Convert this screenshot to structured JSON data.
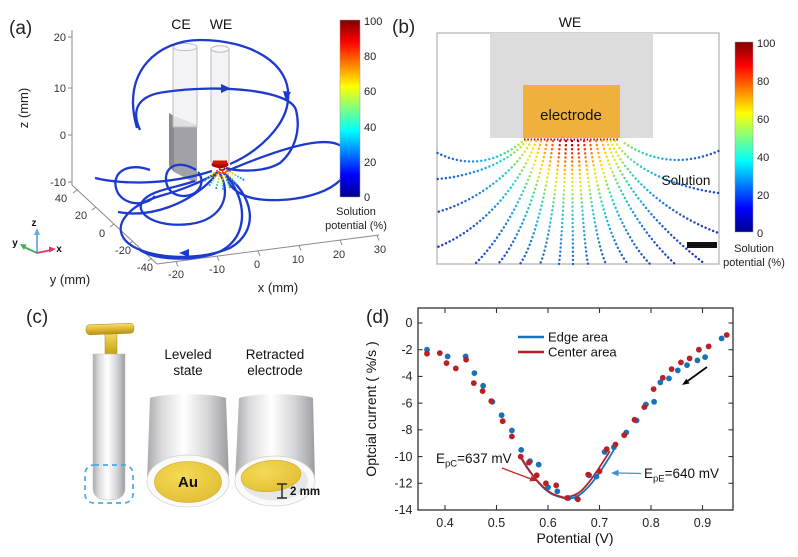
{
  "colors": {
    "streamline_blue": "#1c3ad0",
    "electrode_orange": "#f0b03c",
    "holder_gray": "#dcdcdc",
    "gold": "#e9c636",
    "axis_gray": "#8a8a8a",
    "plot_axis": "#333333"
  },
  "panel_a": {
    "label": "(a)",
    "ce_label": "CE",
    "we_label": "WE",
    "z_axis": {
      "label": "z (mm)",
      "ticks": [
        "20",
        "10",
        "0",
        "-10"
      ]
    },
    "y_axis": {
      "label": "y (mm)",
      "ticks": [
        "40",
        "20",
        "0",
        "-20",
        "-40"
      ]
    },
    "x_axis": {
      "label": "x (mm)",
      "ticks": [
        "-20",
        "-10",
        "0",
        "10",
        "20",
        "30"
      ]
    },
    "triad": {
      "x": "x",
      "y": "y",
      "z": "z"
    },
    "colorbar": {
      "ticks": [
        "100",
        "80",
        "60",
        "40",
        "20",
        "0"
      ],
      "title_line1": "Solution",
      "title_line2": "potential (%)"
    }
  },
  "panel_b": {
    "label": "(b)",
    "title": "WE",
    "electrode_label": "electrode",
    "solution_label": "Solution",
    "colorbar": {
      "ticks": [
        "100",
        "80",
        "60",
        "40",
        "20",
        "0"
      ],
      "title_line1": "Solution",
      "title_line2": "potential (%)"
    }
  },
  "panel_c": {
    "label": "(c)",
    "leveled": {
      "line1": "Leveled",
      "line2": "state"
    },
    "retracted": {
      "line1": "Retracted",
      "line2": "electrode"
    },
    "au_label": "Au",
    "scale_label": "2 mm"
  },
  "panel_d": {
    "label": "(d)"
  },
  "chart_data": {
    "type": "scatter",
    "title": "",
    "xlabel": "Potential (V)",
    "ylabel": "Optcial current ( %/s )",
    "xlim": [
      0.348,
      0.959
    ],
    "ylim": [
      -14,
      1.1
    ],
    "grid": false,
    "legend_position": "top-center-inside",
    "x_ticks": [
      {
        "value": 0.4,
        "label": "0.4"
      },
      {
        "value": 0.5,
        "label": "0.5"
      },
      {
        "value": 0.6,
        "label": "0.6"
      },
      {
        "value": 0.7,
        "label": "0.7"
      },
      {
        "value": 0.8,
        "label": "0.8"
      },
      {
        "value": 0.9,
        "label": "0.9"
      }
    ],
    "y_ticks": [
      {
        "value": 0,
        "label": "0"
      },
      {
        "value": -2,
        "label": "-2"
      },
      {
        "value": -4,
        "label": "-4"
      },
      {
        "value": -6,
        "label": "-6"
      },
      {
        "value": -8,
        "label": "-8"
      },
      {
        "value": -10,
        "label": "-10"
      },
      {
        "value": -12,
        "label": "-12"
      },
      {
        "value": -14,
        "label": "-14"
      }
    ],
    "series": [
      {
        "name": "Edge area",
        "color": "#1672b9",
        "marker": "circle",
        "points": [
          [
            0.365,
            -2.0
          ],
          [
            0.405,
            -2.5
          ],
          [
            0.44,
            -2.5
          ],
          [
            0.457,
            -3.75
          ],
          [
            0.474,
            -4.7
          ],
          [
            0.492,
            -5.9
          ],
          [
            0.51,
            -6.9
          ],
          [
            0.53,
            -8.05
          ],
          [
            0.548,
            -9.5
          ],
          [
            0.565,
            -10.35
          ],
          [
            0.582,
            -10.6
          ],
          [
            0.6,
            -12.3
          ],
          [
            0.618,
            -12.6
          ],
          [
            0.64,
            -13.1
          ],
          [
            0.656,
            -13.1
          ],
          [
            0.68,
            -11.4
          ],
          [
            0.694,
            -11.5
          ],
          [
            0.71,
            -9.65
          ],
          [
            0.728,
            -9.3
          ],
          [
            0.752,
            -8.2
          ],
          [
            0.772,
            -7.3
          ],
          [
            0.79,
            -6.1
          ],
          [
            0.806,
            -5.9
          ],
          [
            0.818,
            -4.45
          ],
          [
            0.835,
            -4.15
          ],
          [
            0.852,
            -3.55
          ],
          [
            0.87,
            -3.15
          ],
          [
            0.89,
            -2.8
          ],
          [
            0.905,
            -2.55
          ],
          [
            0.937,
            -1.15
          ]
        ]
      },
      {
        "name": "Center area",
        "color": "#b92025",
        "marker": "circle",
        "points": [
          [
            0.365,
            -2.3
          ],
          [
            0.39,
            -2.25
          ],
          [
            0.403,
            -3.0
          ],
          [
            0.421,
            -3.4
          ],
          [
            0.441,
            -2.75
          ],
          [
            0.456,
            -4.5
          ],
          [
            0.473,
            -5.1
          ],
          [
            0.49,
            -5.85
          ],
          [
            0.512,
            -7.35
          ],
          [
            0.53,
            -8.5
          ],
          [
            0.547,
            -10.0
          ],
          [
            0.563,
            -10.45
          ],
          [
            0.578,
            -11.4
          ],
          [
            0.596,
            -12.0
          ],
          [
            0.616,
            -12.15
          ],
          [
            0.637,
            -13.1
          ],
          [
            0.658,
            -13.2
          ],
          [
            0.678,
            -11.35
          ],
          [
            0.7,
            -11.1
          ],
          [
            0.714,
            -9.45
          ],
          [
            0.731,
            -9.1
          ],
          [
            0.748,
            -8.4
          ],
          [
            0.768,
            -7.25
          ],
          [
            0.787,
            -6.3
          ],
          [
            0.805,
            -4.95
          ],
          [
            0.823,
            -4.1
          ],
          [
            0.84,
            -3.45
          ],
          [
            0.858,
            -2.95
          ],
          [
            0.875,
            -2.65
          ],
          [
            0.893,
            -2.0
          ],
          [
            0.912,
            -1.75
          ],
          [
            0.947,
            -0.9
          ]
        ]
      }
    ],
    "fit_curves": [
      {
        "name": "Edge area fit",
        "color": "#1672b9",
        "points": [
          [
            0.545,
            -9.85
          ],
          [
            0.565,
            -11.1
          ],
          [
            0.585,
            -12.1
          ],
          [
            0.605,
            -12.75
          ],
          [
            0.625,
            -13.05
          ],
          [
            0.64,
            -13.15
          ],
          [
            0.66,
            -12.9
          ],
          [
            0.68,
            -12.2
          ],
          [
            0.7,
            -11.2
          ],
          [
            0.72,
            -10.0
          ],
          [
            0.728,
            -9.5
          ]
        ]
      },
      {
        "name": "Center area fit",
        "color": "#b92025",
        "points": [
          [
            0.545,
            -9.95
          ],
          [
            0.565,
            -11.15
          ],
          [
            0.585,
            -12.05
          ],
          [
            0.605,
            -12.7
          ],
          [
            0.625,
            -13.0
          ],
          [
            0.637,
            -13.05
          ],
          [
            0.66,
            -12.7
          ],
          [
            0.68,
            -11.9
          ],
          [
            0.7,
            -10.8
          ],
          [
            0.72,
            -9.6
          ]
        ]
      }
    ],
    "annotations": [
      {
        "id": "epc",
        "prefix": "E",
        "sub": "pC",
        "rest": "=637 mV",
        "arrow_color": "#c4251f"
      },
      {
        "id": "epe",
        "prefix": "E",
        "sub": "pE",
        "rest": "=640 mV",
        "arrow_color": "#3d8fd8"
      },
      {
        "id": "scan-direction",
        "type": "arrow",
        "color": "#000000"
      }
    ]
  }
}
